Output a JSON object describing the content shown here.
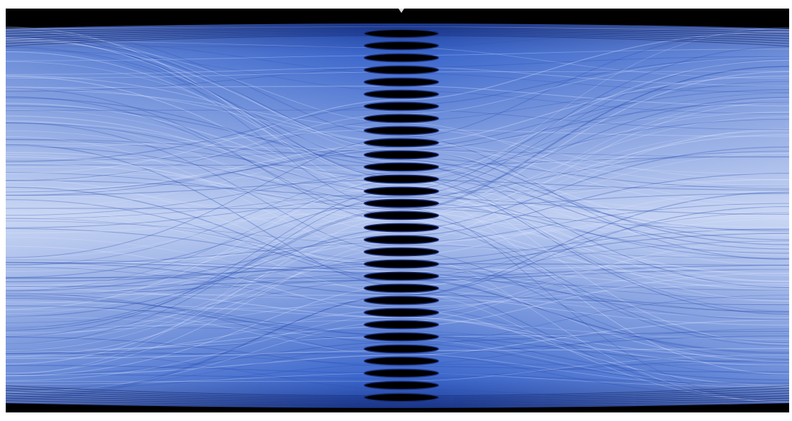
{
  "screen": {
    "eye_openings": 31
  }
}
